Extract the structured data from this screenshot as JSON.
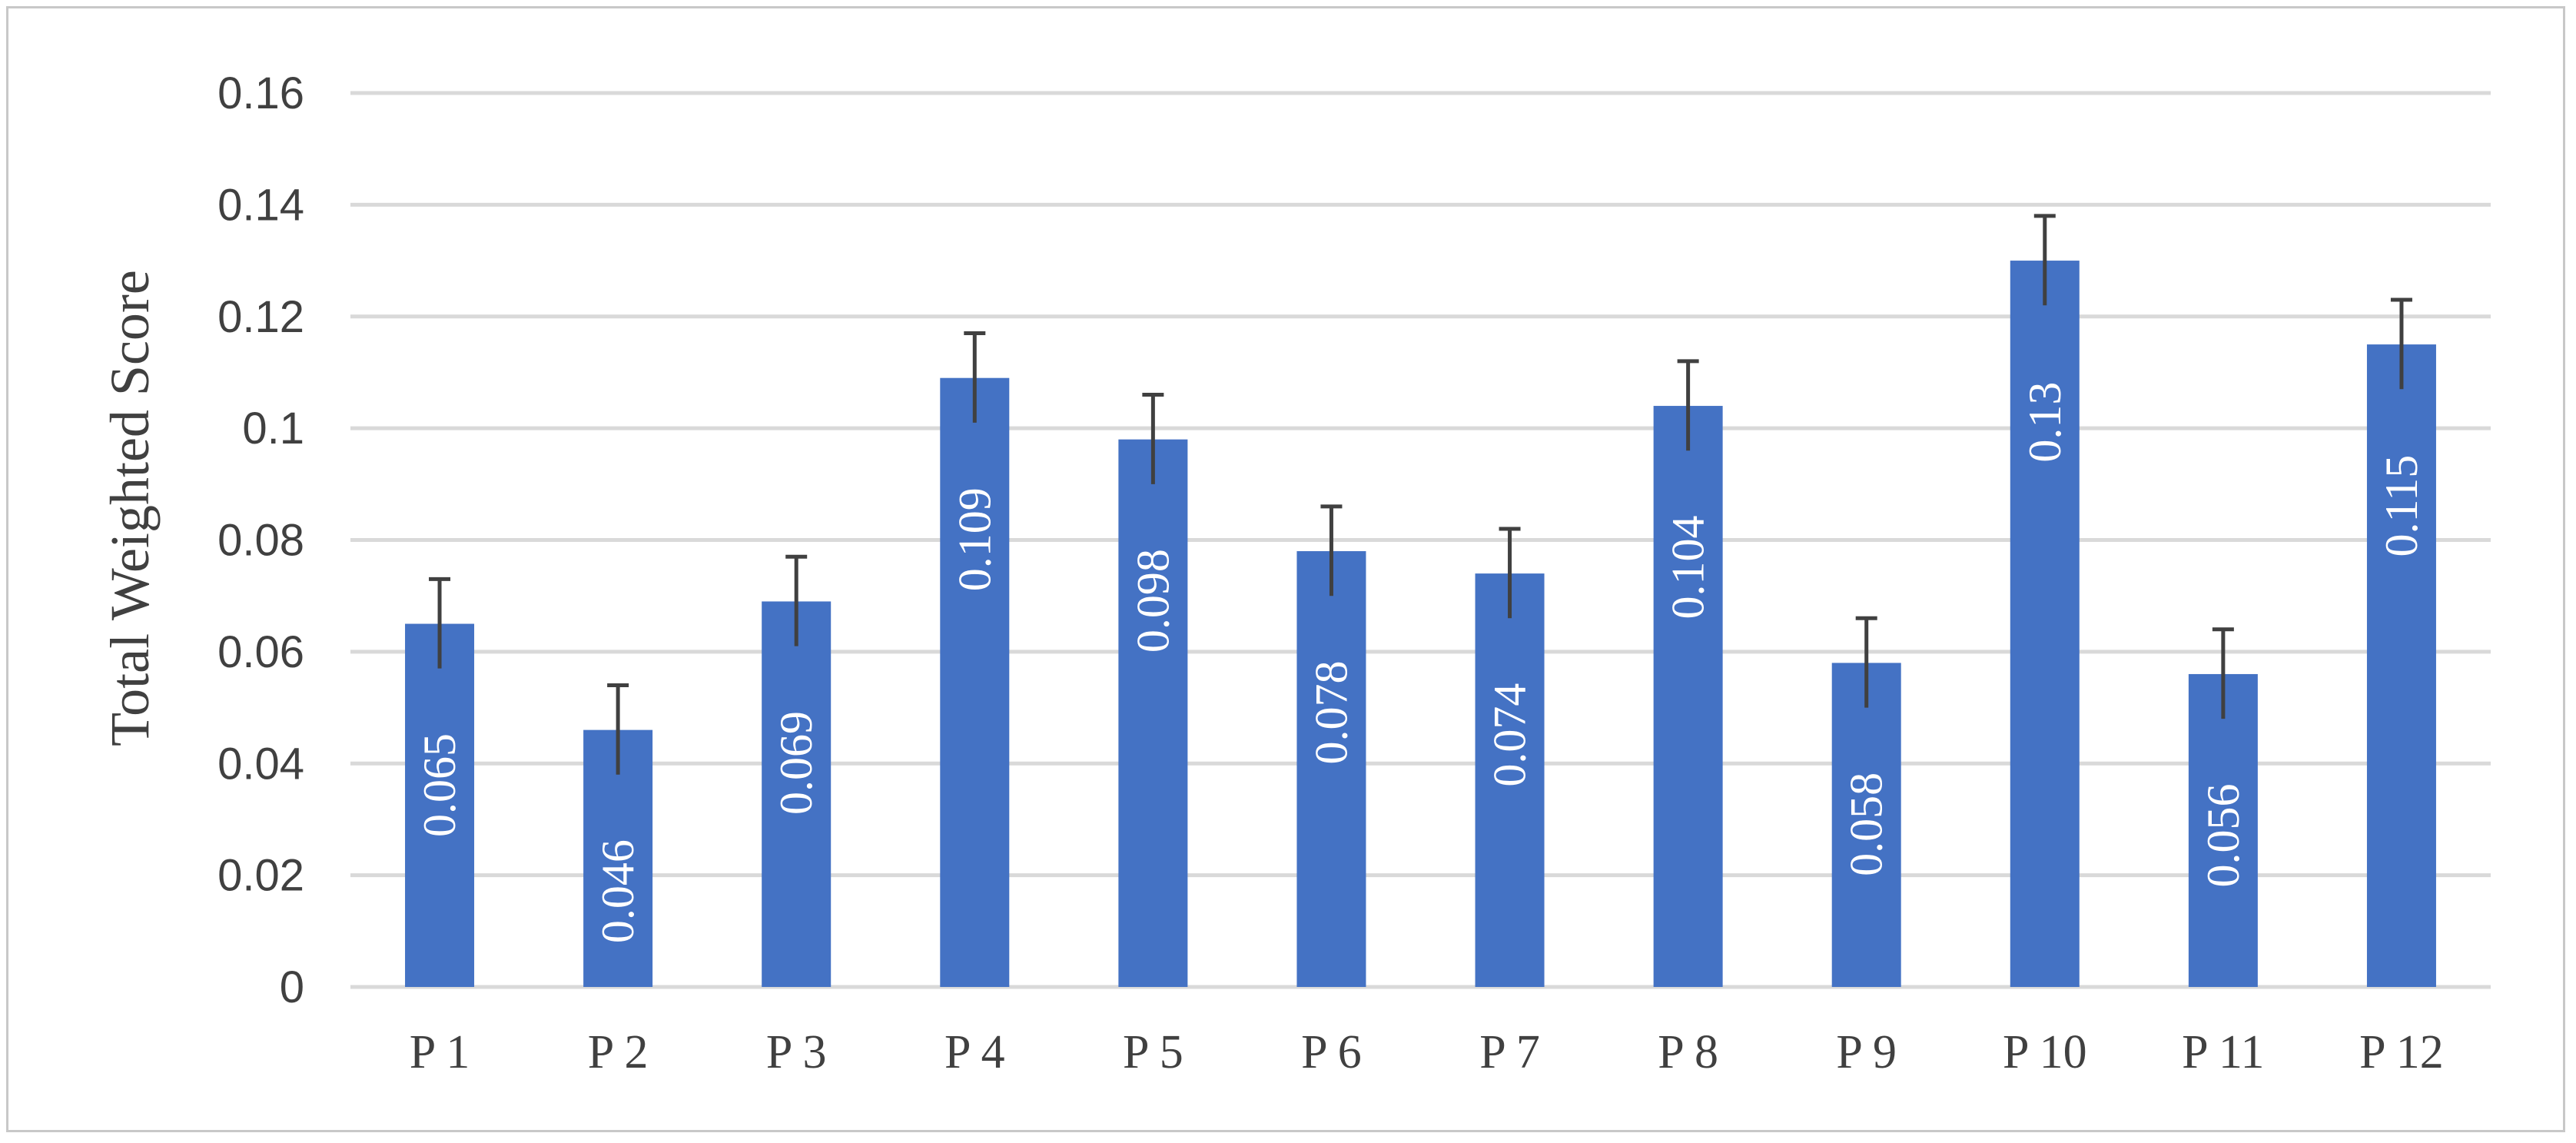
{
  "chart_data": {
    "type": "bar",
    "title": "",
    "xlabel": "",
    "ylabel": "Total Weighted Score",
    "categories": [
      "P 1",
      "P 2",
      "P 3",
      "P 4",
      "P 5",
      "P 6",
      "P 7",
      "P 8",
      "P 9",
      "P 10",
      "P 11",
      "P 12"
    ],
    "values": [
      0.065,
      0.046,
      0.069,
      0.109,
      0.098,
      0.078,
      0.074,
      0.104,
      0.058,
      0.13,
      0.056,
      0.115
    ],
    "data_labels": [
      "0.065",
      "0.046",
      "0.069",
      "0.109",
      "0.098",
      "0.078",
      "0.074",
      "0.104",
      "0.058",
      "0.13",
      "0.056",
      "0.115"
    ],
    "error_bars": [
      0.008,
      0.008,
      0.008,
      0.008,
      0.008,
      0.008,
      0.008,
      0.008,
      0.008,
      0.008,
      0.008,
      0.008
    ],
    "ylim": [
      0,
      0.16
    ],
    "yticks": [
      "0",
      "0.02",
      "0.04",
      "0.06",
      "0.08",
      "0.1",
      "0.12",
      "0.14",
      "0.16"
    ],
    "grid": true,
    "legend": "none",
    "colors": {
      "bar": "#4472C4",
      "error_bar": "#404040",
      "grid": "#d9d9d9",
      "text": "#404040"
    }
  }
}
